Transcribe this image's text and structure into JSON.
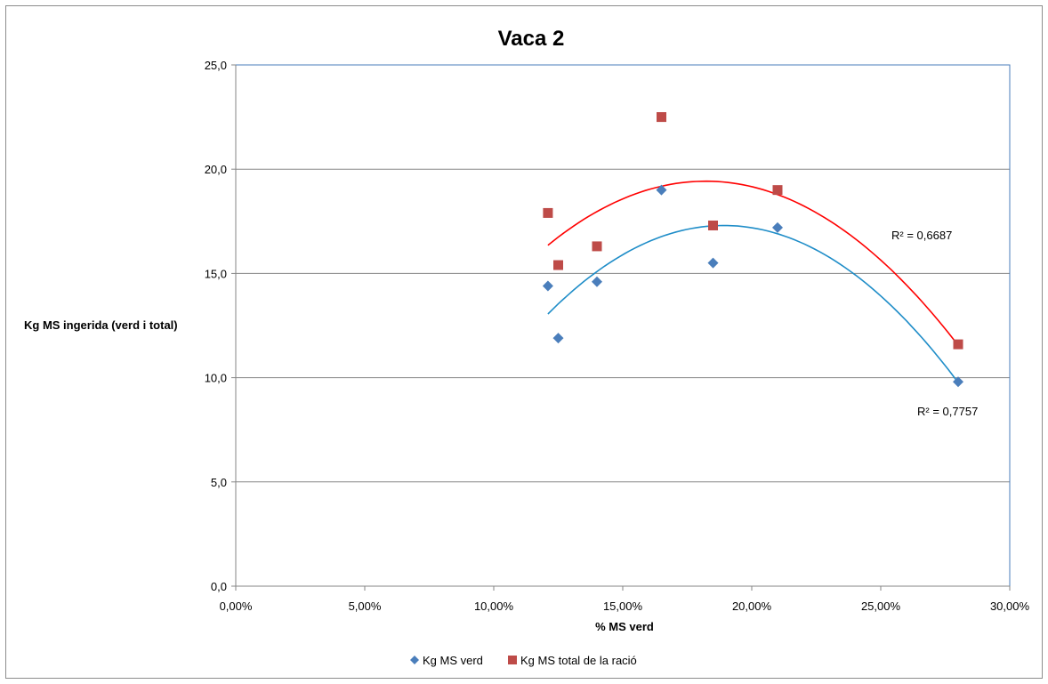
{
  "chart_data": {
    "type": "scatter",
    "title": "Vaca 2",
    "xlabel": "% MS verd",
    "ylabel": "Kg MS ingerida (verd i total)",
    "xlim": [
      0,
      0.3
    ],
    "ylim": [
      0,
      25
    ],
    "x_ticks": [
      "0,00%",
      "5,00%",
      "10,00%",
      "15,00%",
      "20,00%",
      "25,00%",
      "30,00%"
    ],
    "y_ticks": [
      "0,0",
      "5,0",
      "10,0",
      "15,0",
      "20,0",
      "25,0"
    ],
    "grid": "horizontal",
    "legend_position": "bottom",
    "series": [
      {
        "name": "Kg MS verd",
        "marker": "diamond",
        "color": "#4a7ebb",
        "x": [
          0.121,
          0.125,
          0.14,
          0.165,
          0.185,
          0.21,
          0.28
        ],
        "y": [
          14.4,
          11.9,
          14.6,
          19.0,
          15.5,
          17.2,
          9.8
        ],
        "trendline": {
          "type": "polynomial-2",
          "color": "#1f8dc8",
          "r2_label": "R² = 0,7757"
        }
      },
      {
        "name": "Kg MS total de la ració",
        "marker": "square",
        "color": "#be4b48",
        "x": [
          0.121,
          0.125,
          0.14,
          0.165,
          0.185,
          0.21,
          0.28
        ],
        "y": [
          17.9,
          15.4,
          16.3,
          22.5,
          17.3,
          19.0,
          11.6
        ],
        "trendline": {
          "type": "polynomial-2",
          "color": "#ff0000",
          "r2_label": "R² = 0,6687"
        }
      }
    ]
  }
}
